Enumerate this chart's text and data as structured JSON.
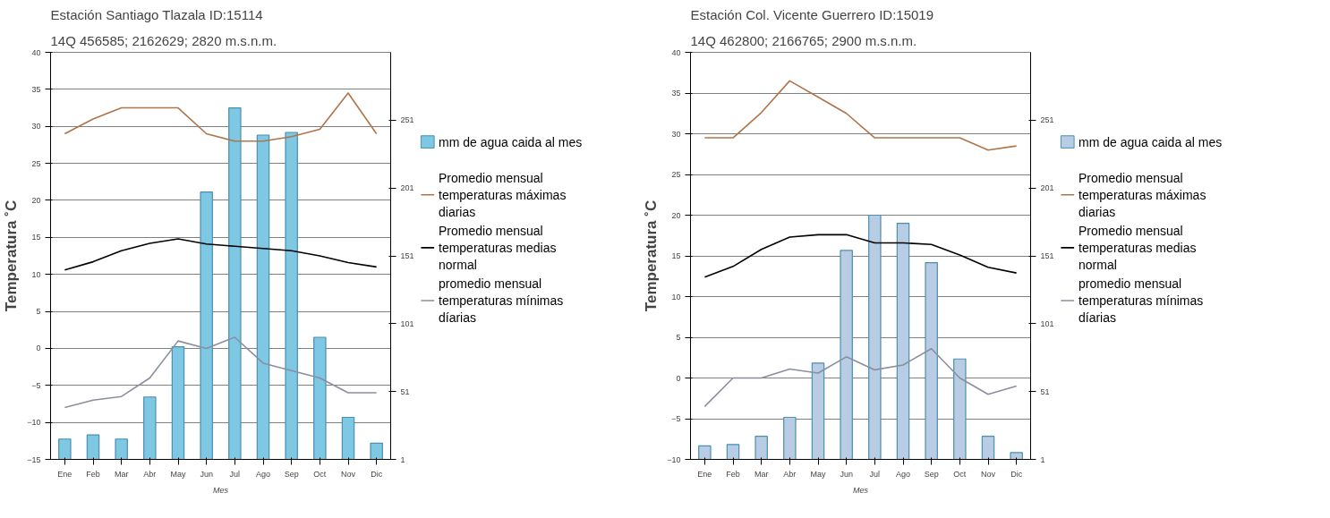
{
  "chart_data": [
    {
      "type": "bar",
      "title": "Estación Santiago Tlazala ID:15114",
      "subtitle": "14Q 456585; 2162629; 2820 m.s.n.m.",
      "xlabel": "Mes",
      "ylabel": "Temperatura ˚C",
      "categories": [
        "Ene",
        "Feb",
        "Mar",
        "Abr",
        "May",
        "Jun",
        "Jul",
        "Ago",
        "Sep",
        "Oct",
        "Nov",
        "Dic"
      ],
      "series": [
        {
          "axis": "y2",
          "name": "mm de agua caida al mes",
          "color": "#7ec8e3",
          "values": [
            16,
            19,
            16,
            47,
            84,
            198,
            260,
            240,
            242,
            91,
            32,
            13
          ]
        },
        {
          "type": "line",
          "name": "Promedio mensual temperaturas máximas diarias",
          "color": "#b0744a",
          "values": [
            29,
            31,
            32.5,
            32.5,
            32.5,
            29,
            28,
            28,
            28.6,
            29.6,
            34.5,
            29
          ]
        },
        {
          "type": "line",
          "name": "Promedio mensual temperaturas medias normal",
          "color": "#000000",
          "values": [
            10.6,
            11.7,
            13.2,
            14.2,
            14.8,
            14.1,
            13.8,
            13.5,
            13.2,
            12.5,
            11.6,
            11.0
          ]
        },
        {
          "type": "line",
          "name": "promedio mensual temperaturas mínimas díarias",
          "color": "#8a8fa0",
          "values": [
            -8,
            -7,
            -6.5,
            -4,
            1,
            0,
            1.5,
            -2,
            -3,
            -4,
            -6,
            -6
          ]
        }
      ],
      "ylim": [
        -15,
        40
      ],
      "yticks": [
        -15,
        -10,
        -5,
        0,
        5,
        10,
        15,
        20,
        25,
        30,
        35,
        40
      ],
      "y2lim": [
        1,
        301
      ],
      "y2ticks": [
        1,
        51,
        101,
        151,
        201,
        251
      ],
      "grid": "y",
      "legend": "right"
    },
    {
      "type": "bar",
      "title": "Estación Col. Vicente Guerrero ID:15019",
      "subtitle": "14Q 462800; 2166765; 2900 m.s.n.m.",
      "xlabel": "Mes",
      "ylabel": "Temperatura ˚C",
      "categories": [
        "Ene",
        "Feb",
        "Mar",
        "Abr",
        "May",
        "Jun",
        "Jul",
        "Ago",
        "Sep",
        "Oct",
        "Nov",
        "Dic"
      ],
      "series": [
        {
          "axis": "y2",
          "name": "mm de agua caida al mes",
          "color": "#b8cce4",
          "values": [
            11,
            12,
            18,
            32,
            72,
            155,
            181,
            175,
            146,
            75,
            18,
            6
          ]
        },
        {
          "type": "line",
          "name": "Promedio mensual temperaturas máximas diarias",
          "color": "#b0744a",
          "values": [
            29.5,
            29.5,
            32.6,
            36.5,
            34.5,
            32.5,
            29.5,
            29.5,
            29.5,
            29.5,
            28,
            28.5
          ]
        },
        {
          "type": "line",
          "name": "Promedio mensual temperaturas medias normal",
          "color": "#000000",
          "values": [
            12.4,
            13.7,
            15.8,
            17.3,
            17.6,
            17.6,
            16.6,
            16.6,
            16.4,
            15.1,
            13.6,
            12.9
          ]
        },
        {
          "type": "line",
          "name": "promedio mensual temperaturas mínimas díarias",
          "color": "#8a8fa0",
          "values": [
            -3.5,
            0,
            0,
            1.1,
            0.6,
            2.6,
            1,
            1.6,
            3.6,
            0,
            -2,
            -1
          ]
        }
      ],
      "ylim": [
        -10,
        40
      ],
      "yticks": [
        -10,
        -5,
        0,
        5,
        10,
        15,
        20,
        25,
        30,
        35,
        40
      ],
      "y2lim": [
        1,
        301
      ],
      "y2ticks": [
        1,
        51,
        101,
        151,
        201,
        251
      ],
      "grid": "y",
      "legend": "right"
    }
  ]
}
